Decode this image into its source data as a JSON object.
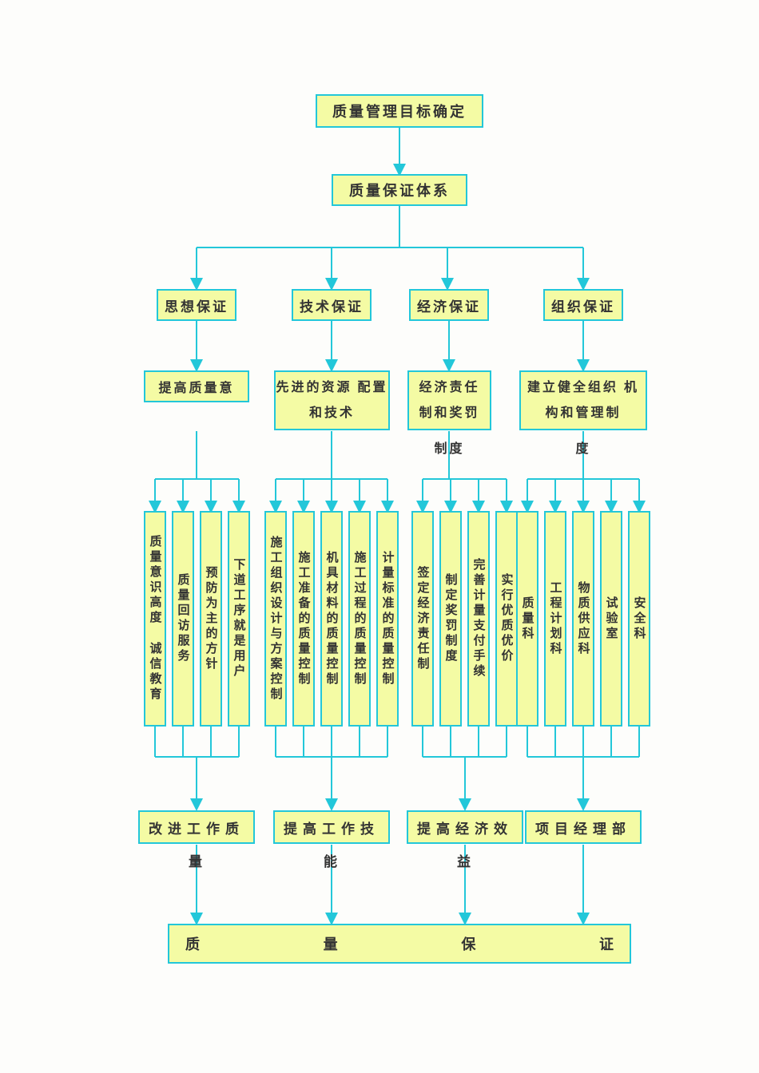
{
  "diagram": {
    "type": "flowchart",
    "background_color": "#fdfdfb",
    "node_fill": "#f4fba4",
    "node_border": "#23c7d9",
    "connector_color": "#23c7d9",
    "font_family": "SimSun",
    "level_top": {
      "n1": "质量管理目标确定",
      "n2": "质量保证体系"
    },
    "branches": {
      "b1": {
        "title": "思想保证",
        "sub": "提高质量意",
        "sub_overflow": ""
      },
      "b2": {
        "title": "技术保证",
        "sub": "先进的资源 配置和技术",
        "sub_overflow": ""
      },
      "b3": {
        "title": "经济保证",
        "sub": "经济责任 制和奖罚",
        "sub_overflow": "制度"
      },
      "b4": {
        "title": "组织保证",
        "sub": "建立健全组织 机构和管理制",
        "sub_overflow": "度"
      }
    },
    "leaves": {
      "b1": [
        "质量意识高度 诚信教育",
        "质量回访服务",
        "预防为主的方针",
        "下道工序就是用户"
      ],
      "b2": [
        "施工组织设计与方案控制",
        "施工准备的质量控制",
        "机具材料的质量控制",
        "施工过程的质量控制",
        "计量标准的质量控制"
      ],
      "b3": [
        "签定经济责任制",
        "制定奖罚制度",
        "完善计量支付手续",
        "实行优质优价"
      ],
      "b4": [
        "质量科",
        "工程计划科",
        "物质供应科",
        "试验室",
        "安全科"
      ]
    },
    "summaries": {
      "s1": {
        "in": "改进工作质",
        "out": "量"
      },
      "s2": {
        "in": "提高工作技",
        "out": "能"
      },
      "s3": {
        "in": "提高经济效",
        "out": "益"
      },
      "s4": {
        "in": "项目经理部",
        "out": ""
      }
    },
    "final": {
      "label": "质    量    保    证"
    }
  }
}
